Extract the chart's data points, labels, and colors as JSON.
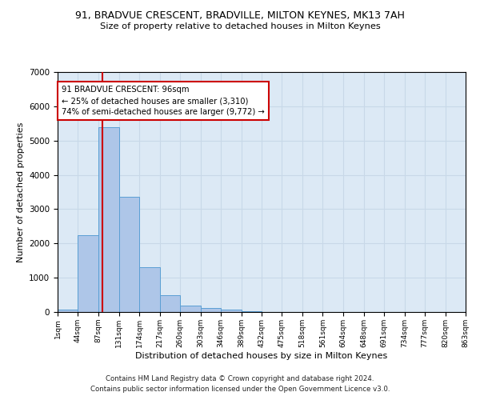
{
  "title": "91, BRADVUE CRESCENT, BRADVILLE, MILTON KEYNES, MK13 7AH",
  "subtitle": "Size of property relative to detached houses in Milton Keynes",
  "xlabel": "Distribution of detached houses by size in Milton Keynes",
  "ylabel": "Number of detached properties",
  "footnote1": "Contains HM Land Registry data © Crown copyright and database right 2024.",
  "footnote2": "Contains public sector information licensed under the Open Government Licence v3.0.",
  "bar_edges": [
    1,
    44,
    87,
    131,
    174,
    217,
    260,
    303,
    346,
    389,
    432,
    475,
    518,
    561,
    604,
    648,
    691,
    734,
    777,
    820,
    863
  ],
  "bar_heights": [
    75,
    2250,
    5400,
    3350,
    1300,
    500,
    185,
    120,
    70,
    15,
    5,
    2,
    1,
    0,
    0,
    0,
    0,
    0,
    0,
    0
  ],
  "bar_color": "#aec6e8",
  "bar_edge_color": "#5a9fd4",
  "grid_color": "#c8d8e8",
  "background_color": "#dce9f5",
  "vline_x": 96,
  "vline_color": "#cc0000",
  "annotation_line1": "91 BRADVUE CRESCENT: 96sqm",
  "annotation_line2": "← 25% of detached houses are smaller (3,310)",
  "annotation_line3": "74% of semi-detached houses are larger (9,772) →",
  "annotation_box_color": "#cc0000",
  "ylim": [
    0,
    7000
  ],
  "yticks": [
    0,
    1000,
    2000,
    3000,
    4000,
    5000,
    6000,
    7000
  ]
}
